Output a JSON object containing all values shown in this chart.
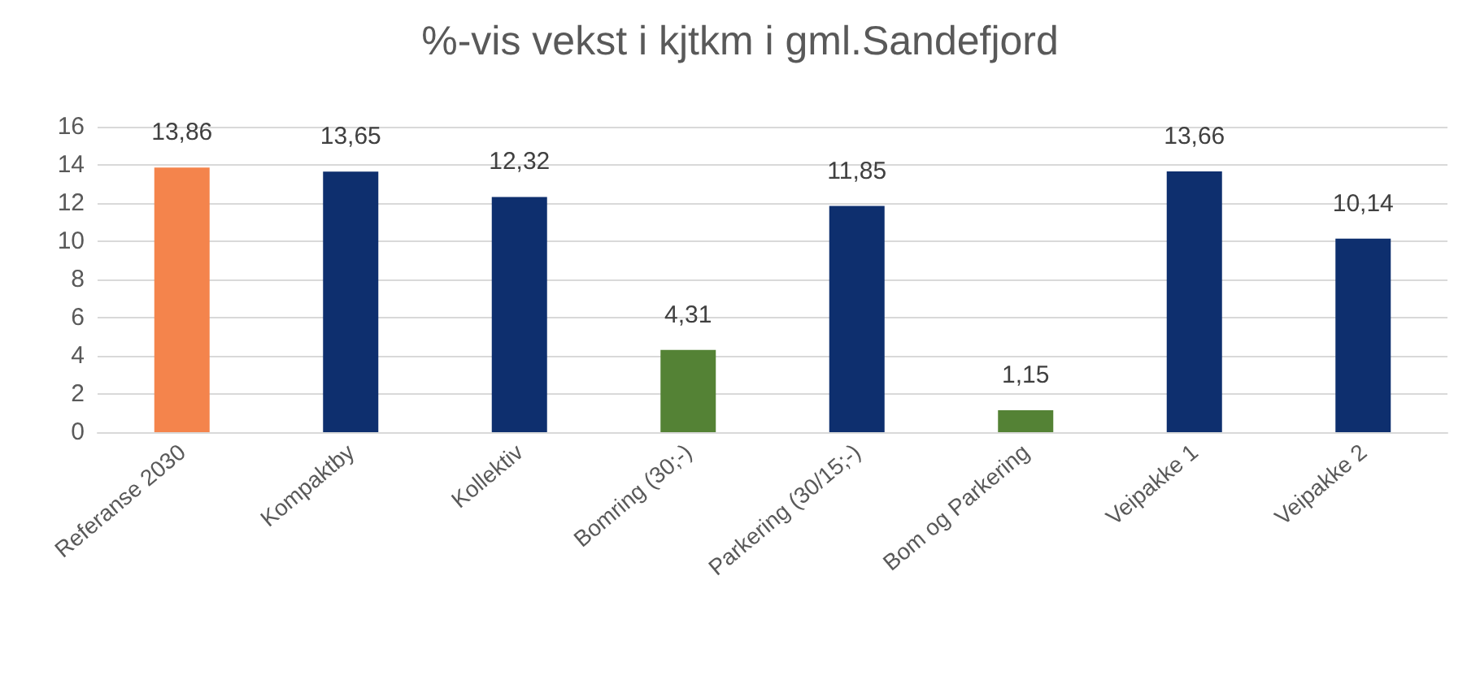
{
  "chart_data": {
    "type": "bar",
    "title": "%-vis vekst i kjtkm i gml.Sandefjord",
    "categories": [
      "Referanse 2030",
      "Kompaktby",
      "Kollektiv",
      "Bomring (30;-)",
      "Parkering (30/15;-)",
      "Bom og Parkering",
      "Veipakke 1",
      "Veipakke 2"
    ],
    "values": [
      13.86,
      13.65,
      12.32,
      4.31,
      11.85,
      1.15,
      13.66,
      10.14
    ],
    "colors": [
      "#f4844c",
      "#0e2f6e",
      "#0e2f6e",
      "#548235",
      "#0e2f6e",
      "#548235",
      "#0e2f6e",
      "#0e2f6e"
    ],
    "value_labels": [
      "13,86",
      "13,65",
      "12,32",
      "4,31",
      "11,85",
      "1,15",
      "13,66",
      "10,14"
    ],
    "ylim": [
      0,
      16
    ],
    "yticks": [
      0,
      2,
      4,
      6,
      8,
      10,
      12,
      14,
      16
    ],
    "grid": "y"
  }
}
